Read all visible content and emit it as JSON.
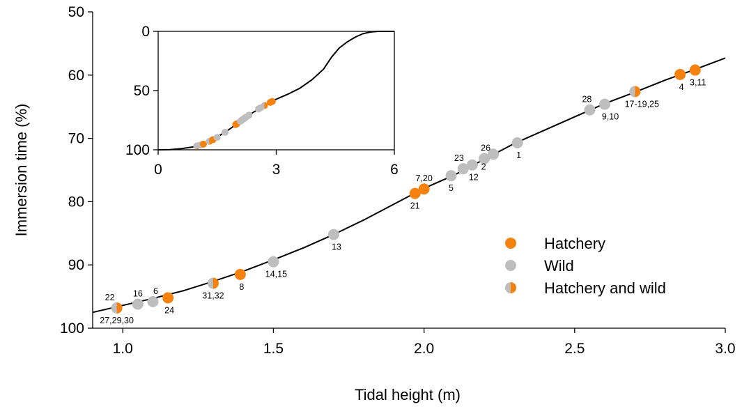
{
  "colors": {
    "hatchery": "#F5820F",
    "wild": "#BEBEBE",
    "curve": "#000000"
  },
  "chart_data": {
    "type": "scatter",
    "xlabel": "Tidal height (m)",
    "ylabel": "Immersion time (%)",
    "xlim": [
      0.9,
      3.0
    ],
    "ylim": [
      50,
      100
    ],
    "y_inverted": true,
    "xticks": [
      1.0,
      1.5,
      2.0,
      2.5,
      3.0
    ],
    "xtick_labels": [
      "1.0",
      "1.5",
      "2.0",
      "2.5",
      "3.0"
    ],
    "yticks": [
      50,
      60,
      70,
      80,
      90,
      100
    ],
    "ytick_labels": [
      "50",
      "60",
      "70",
      "80",
      "90",
      "100"
    ],
    "legend": {
      "placement": "lower-right",
      "entries": [
        {
          "label": "Hatchery",
          "type": "hatchery"
        },
        {
          "label": "Wild",
          "type": "wild"
        },
        {
          "label": "Hatchery and wild",
          "type": "both"
        }
      ]
    },
    "curve": [
      [
        0.9,
        97.5
      ],
      [
        1.0,
        96.4
      ],
      [
        1.1,
        95.3
      ],
      [
        1.2,
        94.1
      ],
      [
        1.3,
        92.6
      ],
      [
        1.4,
        91.0
      ],
      [
        1.5,
        89.2
      ],
      [
        1.6,
        87.3
      ],
      [
        1.7,
        85.2
      ],
      [
        1.8,
        82.9
      ],
      [
        1.9,
        80.4
      ],
      [
        2.0,
        77.9
      ],
      [
        2.1,
        75.8
      ],
      [
        2.2,
        73.3
      ],
      [
        2.3,
        70.8
      ],
      [
        2.4,
        68.7
      ],
      [
        2.5,
        66.6
      ],
      [
        2.6,
        64.5
      ],
      [
        2.7,
        62.7
      ],
      [
        2.8,
        60.8
      ],
      [
        2.9,
        59.1
      ],
      [
        3.0,
        57.3
      ]
    ],
    "points": [
      {
        "x": 0.98,
        "y": 96.8,
        "type": "both",
        "label": "27,29,30"
      },
      {
        "x": 0.98,
        "y": 96.8,
        "type": "both",
        "label": "22"
      },
      {
        "x": 1.05,
        "y": 96.2,
        "type": "wild",
        "label": "16"
      },
      {
        "x": 1.1,
        "y": 95.8,
        "type": "wild",
        "label": "6"
      },
      {
        "x": 1.15,
        "y": 95.2,
        "type": "hatchery",
        "label": "24"
      },
      {
        "x": 1.3,
        "y": 92.9,
        "type": "both",
        "label": "31,32"
      },
      {
        "x": 1.39,
        "y": 91.5,
        "type": "hatchery",
        "label": "8"
      },
      {
        "x": 1.5,
        "y": 89.5,
        "type": "wild",
        "label": "14,15"
      },
      {
        "x": 1.7,
        "y": 85.2,
        "type": "wild",
        "label": "13"
      },
      {
        "x": 1.97,
        "y": 78.7,
        "type": "hatchery",
        "label": "21"
      },
      {
        "x": 2.0,
        "y": 78.0,
        "type": "hatchery",
        "label": "7,20"
      },
      {
        "x": 2.09,
        "y": 75.9,
        "type": "wild",
        "label": "5"
      },
      {
        "x": 2.13,
        "y": 74.8,
        "type": "wild",
        "label": "23"
      },
      {
        "x": 2.16,
        "y": 74.2,
        "type": "wild",
        "label": "12"
      },
      {
        "x": 2.2,
        "y": 73.2,
        "type": "wild",
        "label": "26"
      },
      {
        "x": 2.23,
        "y": 72.5,
        "type": "wild",
        "label": "2"
      },
      {
        "x": 2.31,
        "y": 70.7,
        "type": "wild",
        "label": "1"
      },
      {
        "x": 2.55,
        "y": 65.5,
        "type": "wild",
        "label": "28"
      },
      {
        "x": 2.6,
        "y": 64.6,
        "type": "wild",
        "label": "9,10"
      },
      {
        "x": 2.7,
        "y": 62.6,
        "type": "both",
        "label": "17-19,25"
      },
      {
        "x": 2.85,
        "y": 59.9,
        "type": "hatchery",
        "label": "4"
      },
      {
        "x": 2.9,
        "y": 59.2,
        "type": "hatchery",
        "label": "3,11"
      }
    ],
    "inset": {
      "xlim": [
        0,
        6
      ],
      "ylim": [
        0,
        100
      ],
      "y_inverted": true,
      "xticks": [
        0,
        3,
        6
      ],
      "xtick_labels": [
        "0",
        "3",
        "6"
      ],
      "yticks": [
        0,
        50,
        100
      ],
      "ytick_labels": [
        "0",
        "50",
        "100"
      ],
      "curve": [
        [
          0.0,
          100
        ],
        [
          0.3,
          99.8
        ],
        [
          0.6,
          99.0
        ],
        [
          0.9,
          97.5
        ],
        [
          1.2,
          94.1
        ],
        [
          1.5,
          89.2
        ],
        [
          1.8,
          82.9
        ],
        [
          2.1,
          75.8
        ],
        [
          2.4,
          68.7
        ],
        [
          2.7,
          62.7
        ],
        [
          3.0,
          57.3
        ],
        [
          3.3,
          53.0
        ],
        [
          3.6,
          48.0
        ],
        [
          3.9,
          41.0
        ],
        [
          4.2,
          32.0
        ],
        [
          4.4,
          22.0
        ],
        [
          4.6,
          14.0
        ],
        [
          4.8,
          9.0
        ],
        [
          5.0,
          5.0
        ],
        [
          5.2,
          2.0
        ],
        [
          5.4,
          0.5
        ],
        [
          5.6,
          0.0
        ],
        [
          6.0,
          0.0
        ]
      ]
    }
  }
}
